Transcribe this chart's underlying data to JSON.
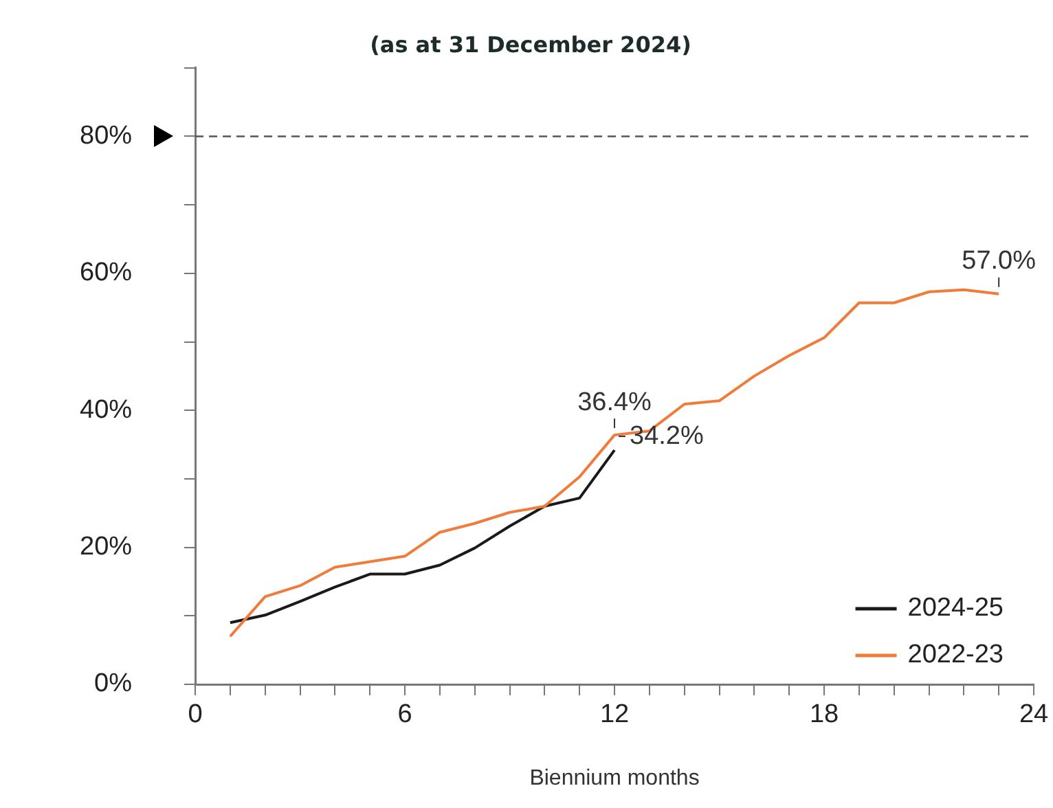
{
  "chart_data": {
    "type": "line",
    "title": "(as at 31 December 2024)",
    "xlabel": "Biennium months",
    "series": [
      {
        "name": "2024-25",
        "color": "#1a1a1a",
        "x": [
          1,
          2,
          3,
          4,
          5,
          6,
          7,
          8,
          9,
          10,
          11,
          12
        ],
        "values": [
          9.0,
          10.1,
          12.1,
          14.2,
          16.1,
          16.1,
          17.4,
          19.9,
          23.1,
          26.0,
          27.2,
          34.2
        ],
        "value_labels": [
          null,
          null,
          null,
          null,
          null,
          null,
          null,
          null,
          null,
          null,
          null,
          "34.2%"
        ]
      },
      {
        "name": "2022-23",
        "color": "#f07c3c",
        "x": [
          1,
          2,
          3,
          4,
          5,
          6,
          7,
          8,
          9,
          10,
          11,
          12,
          13,
          14,
          15,
          16,
          17,
          18,
          19,
          20,
          21,
          22,
          23
        ],
        "values": [
          7.0,
          12.8,
          14.4,
          17.1,
          17.9,
          18.7,
          22.2,
          23.5,
          25.1,
          26.0,
          30.3,
          36.4,
          37.0,
          40.9,
          41.4,
          45.0,
          48.0,
          50.6,
          55.7,
          55.7,
          57.3,
          57.6,
          57.0
        ],
        "value_labels": [
          null,
          null,
          null,
          null,
          null,
          null,
          null,
          null,
          null,
          null,
          null,
          "36.4%",
          null,
          null,
          null,
          null,
          null,
          null,
          null,
          null,
          null,
          null,
          "57.0%"
        ]
      }
    ],
    "xlim": [
      0,
      24
    ],
    "xticks": [
      0,
      {
        "value": 1,
        "label": null
      },
      {
        "value": 2,
        "label": null
      },
      {
        "value": 3,
        "label": null
      },
      {
        "value": 4,
        "label": null
      },
      {
        "value": 5,
        "label": null
      },
      6,
      {
        "value": 7,
        "label": null
      },
      {
        "value": 8,
        "label": null
      },
      {
        "value": 9,
        "label": null
      },
      {
        "value": 10,
        "label": null
      },
      {
        "value": 11,
        "label": null
      },
      12,
      {
        "value": 13,
        "label": null
      },
      {
        "value": 14,
        "label": null
      },
      {
        "value": 15,
        "label": null
      },
      {
        "value": 16,
        "label": null
      },
      {
        "value": 17,
        "label": null
      },
      18,
      {
        "value": 19,
        "label": null
      },
      {
        "value": 20,
        "label": null
      },
      {
        "value": 21,
        "label": null
      },
      {
        "value": 22,
        "label": null
      },
      {
        "value": 23,
        "label": null
      },
      24
    ],
    "ylim": [
      0,
      90
    ],
    "yticks": [
      {
        "value": 0,
        "label": "0%"
      },
      {
        "value": 10,
        "label": null
      },
      {
        "value": 20,
        "label": "20%"
      },
      {
        "value": 30,
        "label": null
      },
      {
        "value": 40,
        "label": "40%"
      },
      {
        "value": 50,
        "label": null
      },
      {
        "value": 60,
        "label": "60%"
      },
      {
        "value": 70,
        "label": null
      },
      {
        "value": 80,
        "label": "80%"
      },
      {
        "value": 90,
        "label": null
      }
    ],
    "ref_lines": [
      {
        "axis": "y",
        "value": 80,
        "color": "#555555",
        "line_style": "dashed"
      }
    ],
    "legend": "bottom right",
    "grid": false,
    "marker": "none",
    "line_style": "solid"
  }
}
